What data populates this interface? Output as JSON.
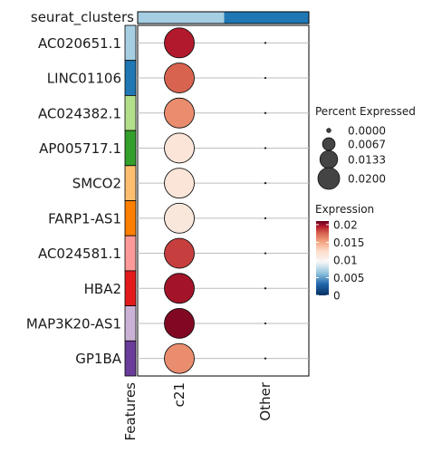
{
  "chart_data": {
    "type": "dotplot",
    "title": "",
    "top_annotation": {
      "label": "seurat_clusters",
      "colors": [
        "#a6cee3",
        "#1f78b4"
      ]
    },
    "genes": [
      "AC020651.1",
      "LINC01106",
      "AC024382.1",
      "AP005717.1",
      "SMCO2",
      "FARP1-AS1",
      "AC024581.1",
      "HBA2",
      "MAP3K20-AS1",
      "GP1BA"
    ],
    "feature_colors": [
      "#a6cee3",
      "#1f78b4",
      "#b2df8a",
      "#33a02c",
      "#fdbf6f",
      "#ff7f00",
      "#fb9a99",
      "#e31a1c",
      "#cab2d6",
      "#6a3d9a"
    ],
    "groups": [
      "c21",
      "Other"
    ],
    "feature_axis_label": "Features",
    "series": [
      {
        "name": "c21",
        "percent_expressed": [
          0.02,
          0.02,
          0.02,
          0.02,
          0.02,
          0.02,
          0.02,
          0.02,
          0.02,
          0.02
        ],
        "expression": [
          0.0195,
          0.0175,
          0.016,
          0.0115,
          0.0115,
          0.0112,
          0.0185,
          0.0198,
          0.0205,
          0.016
        ]
      },
      {
        "name": "Other",
        "percent_expressed": [
          0,
          0,
          0,
          0,
          0,
          0,
          0,
          0,
          0,
          0
        ],
        "expression": [
          0,
          0,
          0,
          0,
          0,
          0,
          0,
          0,
          0,
          0
        ]
      }
    ],
    "size_legend": {
      "title": "Percent Expressed",
      "breaks": [
        "0.0000",
        "0.0067",
        "0.0133",
        "0.0200"
      ],
      "values": [
        0,
        0.0067,
        0.0133,
        0.02
      ]
    },
    "color_legend": {
      "title": "Expression",
      "breaks": [
        "0.02",
        "0.015",
        "0.01",
        "0.005",
        "0"
      ],
      "values": [
        0.02,
        0.015,
        0.01,
        0.005,
        0
      ],
      "range": [
        0,
        0.021
      ]
    }
  }
}
